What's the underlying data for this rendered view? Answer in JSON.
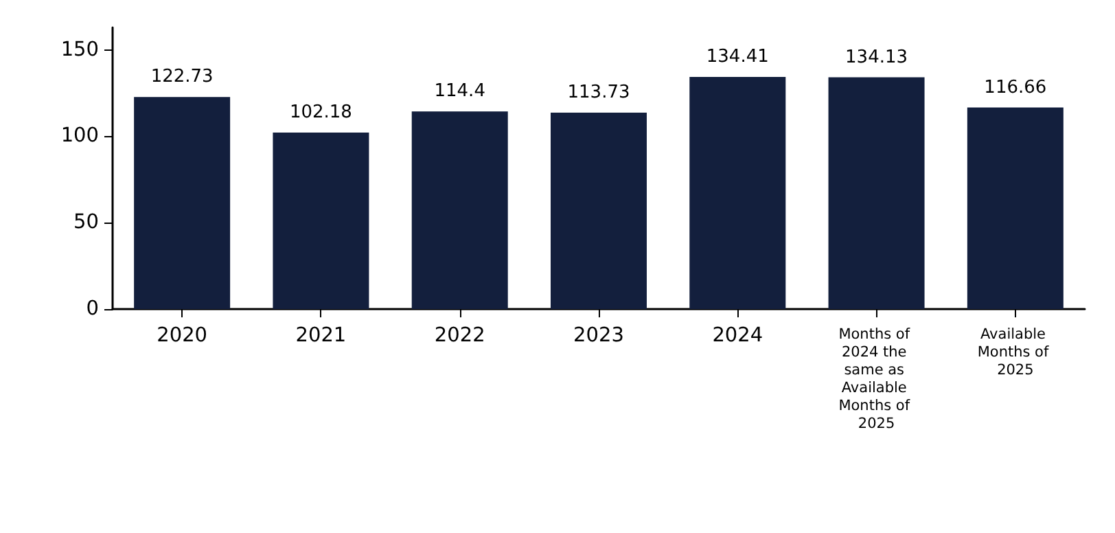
{
  "chart_data": {
    "type": "bar",
    "categories": [
      "2020",
      "2021",
      "2022",
      "2023",
      "2024",
      "Months of 2024 the same as Available Months of 2025",
      "Available Months of 2025"
    ],
    "values": [
      122.73,
      102.18,
      114.4,
      113.73,
      134.41,
      134.13,
      116.66
    ],
    "color": "#131f3d",
    "ylim": [
      0,
      163
    ],
    "yticks": [
      0,
      50,
      100,
      150
    ],
    "data_labels": true,
    "grid": false
  }
}
